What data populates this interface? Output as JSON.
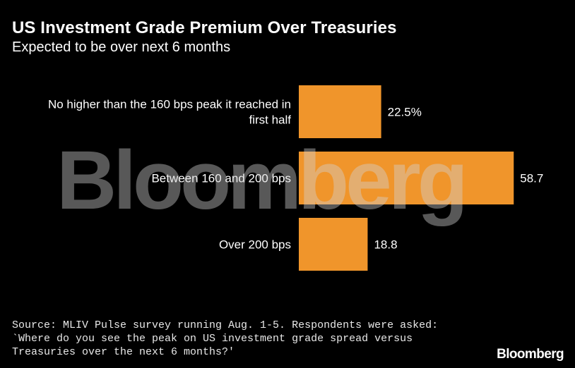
{
  "header": {
    "title": "US Investment Grade Premium Over Treasuries",
    "subtitle": "Expected to be over next 6 months"
  },
  "chart_data": {
    "type": "bar",
    "orientation": "horizontal",
    "categories": [
      [
        "No higher than the 160 bps peak it reached in",
        "first half"
      ],
      [
        "Between 160 and 200 bps"
      ],
      [
        "Over 200 bps"
      ]
    ],
    "values": [
      22.5,
      58.7,
      18.8
    ],
    "value_labels": [
      "22.5%",
      "58.7",
      "18.8"
    ],
    "xlim": [
      0,
      60
    ],
    "grid": false,
    "legend": "none",
    "bar_color": "#f0952b"
  },
  "watermark": {
    "text": "Bloomberg"
  },
  "footer": {
    "source": "Source: MLIV Pulse survey running Aug. 1-5. Respondents were asked: `Where do you see the peak on US investment grade spread versus Treasuries over the next 6 months?'",
    "brand": "Bloomberg"
  },
  "colors": {
    "background": "#000000",
    "text": "#ffffff",
    "bar": "#f0952b"
  }
}
